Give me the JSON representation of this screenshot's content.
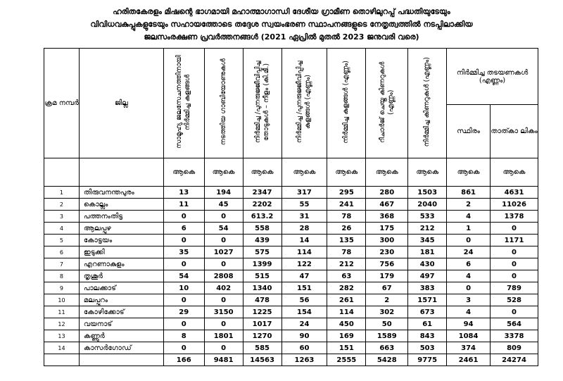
{
  "title": [
    "ഹരിതകേരളം മിഷന്റെ ഭാഗമായി മഹാത്മാഗാന്ധി ദേശീയ ഗ്രാമീണ തൊഴിലുറപ്പ് പദ്ധതിയുടേയും",
    "വിവിധവകുപ്പുകളുടേയും സഹായത്തോടെ തദ്ദേശ സ്വയംഭരണ സ്ഥാപനങ്ങളുടെ നേതൃത്വത്തിൽ നടപ്പിലാക്കിയ",
    "ജലസംരക്ഷണ പ്രവർത്തനങ്ങൾ (2021 ഏപ്രിൽ മുതൽ 2023 ജനുവരി  വരെ)"
  ],
  "table": {
    "serial_header": "ക്രമ നമ്പർ",
    "district_header": "ജില്ല",
    "columns": [
      "സാമൂഹ്യ ജലസേചനത്തിനായി നിർമ്മിച്ച കുളങ്ങൾ",
      "നടത്തിയ ഗാബിയോണുകൾ",
      "നിർമ്മിച്ച /പുനരുജ്ജീവിപ്പിച്ച തോടുകൾ – നീളം (കി.മീ.)",
      "നിർമ്മിച്ച /പുനരുജ്ജീവിപ്പിച്ച കുളങ്ങൾ (എണ്ണം)",
      "നിർമ്മിച്ച കുളങ്ങൾ (എണ്ണം)",
      "റീചാർജ് ചെയ്ത കിണറുകൾ (എണ്ണം)",
      "നിർമ്മിച്ച കിണറുകൾ (എണ്ണം)"
    ],
    "group_header": "നിർമ്മിച്ച തടയണകൾ (എണ്ണം)",
    "group_columns": [
      "സ്ഥിരം",
      "താത്കാ ലികം"
    ],
    "subheaders": [
      "ആകെ",
      "ആകെ",
      "ആകെ",
      "ആകെ",
      "ആകെ",
      "ആകെ",
      "ആകെ",
      "ആകെ",
      "ആകെ"
    ],
    "rows": [
      [
        1,
        "തിരുവനന്തപുരം",
        13,
        194,
        2347,
        317,
        295,
        280,
        1503,
        861,
        4631
      ],
      [
        2,
        "കൊല്ലം",
        11,
        45,
        2202,
        55,
        241,
        467,
        2040,
        2,
        11026
      ],
      [
        3,
        "പത്തനംതിട്ട",
        0,
        0,
        613.2,
        31,
        78,
        368,
        533,
        4,
        1378
      ],
      [
        4,
        "ആലപ്പുഴ",
        6,
        54,
        558,
        28,
        26,
        175,
        212,
        1,
        0
      ],
      [
        5,
        "കോട്ടയം",
        0,
        0,
        439,
        14,
        135,
        300,
        345,
        0,
        1171
      ],
      [
        6,
        "ഇടുക്കി",
        35,
        1027,
        575,
        114,
        78,
        230,
        181,
        24,
        0
      ],
      [
        7,
        "എറണാകുളം",
        0,
        0,
        1399,
        122,
        212,
        756,
        430,
        6,
        0
      ],
      [
        8,
        "തൃശൂർ",
        54,
        2808,
        515,
        47,
        63,
        179,
        497,
        4,
        0
      ],
      [
        9,
        "പാലക്കാട്",
        10,
        402,
        1340,
        151,
        282,
        67,
        383,
        0,
        789
      ],
      [
        10,
        "മലപ്പുറം",
        0,
        0,
        478,
        56,
        261,
        2,
        1571,
        3,
        528
      ],
      [
        11,
        "കോഴിക്കോട്",
        29,
        3150,
        1225,
        154,
        114,
        302,
        673,
        4,
        0
      ],
      [
        12,
        "വയനാട്",
        0,
        0,
        1017,
        24,
        450,
        50,
        61,
        94,
        564
      ],
      [
        13,
        "കണ്ണൂർ",
        8,
        1801,
        1270,
        90,
        169,
        1589,
        843,
        1084,
        3378
      ],
      [
        14,
        "കാസർഗോഡ്",
        0,
        0,
        585,
        60,
        151,
        663,
        503,
        374,
        809
      ]
    ],
    "totals": [
      166,
      9481,
      14563,
      1263,
      2555,
      5428,
      9775,
      2461,
      24274
    ]
  }
}
